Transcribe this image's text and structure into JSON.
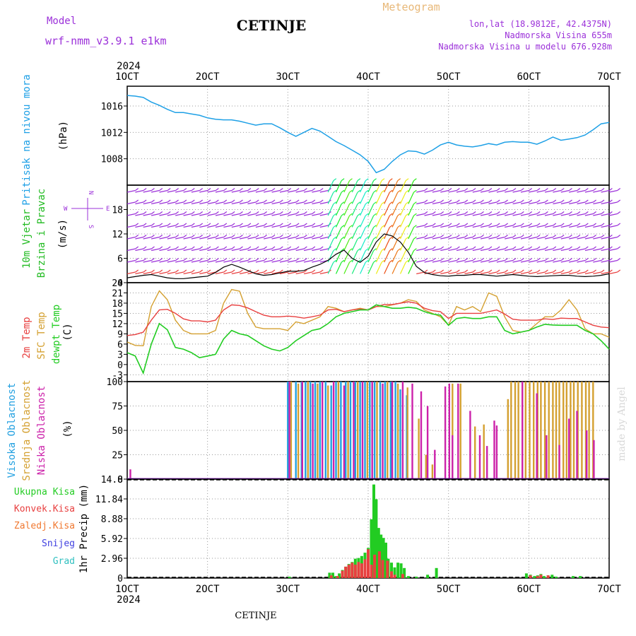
{
  "header": {
    "model_label": "Model",
    "model_name": "wrf-nmm_v3.9.1 e1km",
    "station": "CETINJE",
    "meteogram": "Meteogram",
    "lonlat": "lon,lat (18.9812E, 42.4375N)",
    "altitude": "Nadmorska Visina 655m",
    "model_altitude": "Nadmorska Visina u modelu 676.928m"
  },
  "footer": {
    "station": "CETINJE",
    "watermark": "made by Angel"
  },
  "colors": {
    "pressure": "#1ea0e6",
    "wind_label": "#22bb22",
    "temp2m": "#e84040",
    "sfc": "#d4a030",
    "dewpt": "#22cc22",
    "high": "#22a0e0",
    "mid": "#d4a030",
    "low": "#cc22aa",
    "total": "#22cc22",
    "conv": "#e84040",
    "frozen": "#f07830",
    "snow": "#4040e0",
    "graupel": "#30c0c0",
    "purple": "#9b30d9"
  },
  "chart_data": [
    {
      "type": "line",
      "title": "Pritisak na nivou mora",
      "ylabel": "(hPa)",
      "ylim": [
        1004,
        1019
      ],
      "yticks": [
        "1016",
        "1012",
        "1008"
      ],
      "x": [
        10,
        11,
        12,
        13,
        14,
        15,
        16,
        17,
        18,
        19,
        20,
        21,
        22,
        23,
        24,
        25,
        26,
        27,
        28,
        29,
        30,
        31,
        32,
        33,
        34,
        35,
        36,
        37,
        38,
        39,
        40,
        41,
        42,
        43,
        44,
        45,
        46,
        47,
        48,
        49,
        50,
        51,
        52,
        53,
        54,
        55,
        56,
        57,
        58,
        59,
        60,
        61,
        62,
        63,
        64,
        65,
        66,
        67,
        68,
        69,
        70
      ],
      "series": [
        {
          "name": "Pritisak na nivou mora",
          "values": [
            1017.6,
            1017.5,
            1017.3,
            1016.6,
            1016.1,
            1015.5,
            1015,
            1015,
            1014.8,
            1014.6,
            1014.2,
            1014,
            1013.9,
            1013.9,
            1013.7,
            1013.4,
            1013.1,
            1013.3,
            1013.3,
            1012.7,
            1012,
            1011.4,
            1012,
            1012.6,
            1012.2,
            1011.4,
            1010.6,
            1010,
            1009.3,
            1008.6,
            1007.6,
            1005.9,
            1006.4,
            1007.6,
            1008.6,
            1009.2,
            1009.1,
            1008.7,
            1009.3,
            1010.1,
            1010.5,
            1010.1,
            1009.9,
            1009.8,
            1010,
            1010.3,
            1010.1,
            1010.5,
            1010.6,
            1010.5,
            1010.5,
            1010.2,
            1010.7,
            1011.3,
            1010.8,
            1011,
            1011.2,
            1011.6,
            1012.4,
            1013.3,
            1013.5
          ]
        }
      ]
    },
    {
      "type": "line",
      "title": "10m Vjetar",
      "subtitle": "Brzina i Pravac",
      "ylabel": "(m/s)",
      "ylim": [
        0,
        24
      ],
      "yticks": [
        "18",
        "12",
        "6",
        "0"
      ],
      "compass": {
        "n": "N",
        "s": "S",
        "w": "W",
        "e": "E"
      },
      "x": [
        10,
        11,
        12,
        13,
        14,
        15,
        16,
        17,
        18,
        19,
        20,
        21,
        22,
        23,
        24,
        25,
        26,
        27,
        28,
        29,
        30,
        31,
        32,
        33,
        34,
        35,
        36,
        37,
        38,
        39,
        40,
        41,
        42,
        43,
        44,
        45,
        46,
        47,
        48,
        49,
        50,
        51,
        52,
        53,
        54,
        55,
        56,
        57,
        58,
        59,
        60,
        61,
        62,
        63,
        64,
        65,
        66,
        67,
        68,
        69,
        70
      ],
      "series": [
        {
          "name": "10m Vjetar",
          "values": [
            1.2,
            1.5,
            1.8,
            2,
            1.6,
            1.2,
            1,
            1,
            1.2,
            1.4,
            1.6,
            2.5,
            3.8,
            4.5,
            3.8,
            3,
            2.2,
            1.8,
            2,
            2.4,
            2.8,
            2.8,
            3,
            3.8,
            4.5,
            5.5,
            7,
            8,
            6,
            5,
            6.5,
            10,
            12,
            11.5,
            10,
            7.5,
            4,
            2.5,
            2,
            1.7,
            1.6,
            1.8,
            1.8,
            2,
            2,
            1.8,
            1.6,
            1.8,
            2,
            1.8,
            1.6,
            1.5,
            1.6,
            1.7,
            1.8,
            1.8,
            1.6,
            1.5,
            1.6,
            1.8,
            2.2
          ]
        }
      ]
    },
    {
      "type": "line",
      "title": "2m Temp",
      "ylabel": "(C)",
      "ylim": [
        -5,
        24
      ],
      "yticks": [
        "24",
        "21",
        "18",
        "15",
        "12",
        "9",
        "6",
        "3",
        "0",
        "-3"
      ],
      "x": [
        10,
        11,
        12,
        13,
        14,
        15,
        16,
        17,
        18,
        19,
        20,
        21,
        22,
        23,
        24,
        25,
        26,
        27,
        28,
        29,
        30,
        31,
        32,
        33,
        34,
        35,
        36,
        37,
        38,
        39,
        40,
        41,
        42,
        43,
        44,
        45,
        46,
        47,
        48,
        49,
        50,
        51,
        52,
        53,
        54,
        55,
        56,
        57,
        58,
        59,
        60,
        61,
        62,
        63,
        64,
        65,
        66,
        67,
        68,
        69,
        70
      ],
      "series": [
        {
          "name": "2m Temp",
          "values": [
            8.5,
            8.8,
            9.5,
            13,
            16,
            16.2,
            15,
            13.4,
            12.8,
            12.8,
            12.5,
            13,
            16,
            17.5,
            17.3,
            16.6,
            15.5,
            14.5,
            14,
            14,
            14.2,
            14,
            13.6,
            14,
            14.5,
            16,
            16.2,
            15.5,
            16,
            16.3,
            16,
            17,
            17.6,
            17.6,
            18,
            18.4,
            18,
            16.5,
            15.8,
            15.5,
            13.5,
            15,
            15,
            15,
            15,
            15.5,
            16,
            14.8,
            13.3,
            13,
            13,
            13,
            13.4,
            13.2,
            13.6,
            13.5,
            13.5,
            12.5,
            11.5,
            11,
            10.8
          ]
        },
        {
          "name": "SFC Temp",
          "values": [
            6.6,
            5.6,
            5.5,
            17,
            21.6,
            19,
            13,
            10,
            9,
            9,
            9,
            10,
            18,
            22,
            21.5,
            15,
            11,
            10.5,
            10.5,
            10.5,
            10,
            12.5,
            12,
            13,
            14,
            17,
            16.5,
            15.5,
            16,
            16.5,
            16,
            17,
            17,
            17.5,
            18,
            19,
            18.5,
            16,
            15,
            14,
            11.5,
            17,
            16,
            17,
            15.5,
            21,
            20,
            14,
            10,
            9.5,
            10,
            12,
            14,
            14,
            16,
            19,
            16,
            10.5,
            9,
            9,
            8
          ]
        },
        {
          "name": "dewpt Temp",
          "values": [
            3.5,
            2.5,
            -2.5,
            6,
            12,
            10.2,
            5,
            4.5,
            3.5,
            2,
            2.5,
            3,
            7.5,
            10,
            9,
            8.5,
            7,
            5.5,
            4.5,
            4,
            5,
            7,
            8.5,
            10,
            10.5,
            12,
            14,
            15,
            15.5,
            16,
            16,
            17.5,
            17,
            16.5,
            16.5,
            16.8,
            16.5,
            15.5,
            14.8,
            14.5,
            11.5,
            13.5,
            13.8,
            13.5,
            13.5,
            14,
            14,
            10,
            9,
            9.5,
            10,
            11,
            11.8,
            11.6,
            11.5,
            11.5,
            11.5,
            10,
            9,
            7,
            4.5
          ]
        }
      ]
    },
    {
      "type": "bar",
      "title": "Visoka Oblacnost",
      "ylabel": "(%)",
      "ylim": [
        0,
        100
      ],
      "yticks": [
        "100",
        "75",
        "50",
        "25",
        "0"
      ],
      "series": [
        {
          "name": "Visoka Oblacnost",
          "x": [
            30,
            31,
            31.7,
            32.2,
            32.8,
            33.4,
            34,
            34.7,
            35.4,
            36,
            36.6,
            37.2,
            37.8,
            38.4,
            39,
            39.6,
            40.2,
            40.8,
            41.5,
            42.1,
            42.8,
            43.4,
            44,
            44.8
          ],
          "values": [
            100,
            100,
            100,
            100,
            100,
            100,
            100,
            100,
            96,
            100,
            100,
            100,
            100,
            100,
            100,
            100,
            100,
            100,
            100,
            100,
            100,
            100,
            92,
            86
          ]
        },
        {
          "name": "Srednja Oblacnost",
          "x": [
            30.4,
            31.3,
            32.5,
            33.7,
            35,
            36.3,
            37.5,
            38.7,
            39.9,
            41.1,
            42.4,
            43.7,
            44.9,
            46.3,
            47.2,
            48,
            50.5,
            51.5,
            53.3,
            54.4,
            57.4,
            57.8,
            58.3,
            58.7,
            59.2,
            59.6,
            60.1,
            60.6,
            61.1,
            61.5,
            62,
            62.5,
            63,
            63.4,
            63.8,
            64.3,
            64.7,
            65.2,
            65.6,
            66.1,
            66.6,
            67.1,
            67.5,
            68
          ],
          "values": [
            100,
            98,
            100,
            98,
            96,
            100,
            100,
            100,
            100,
            100,
            100,
            98,
            94,
            62,
            25,
            15,
            98,
            98,
            54,
            56,
            82,
            100,
            100,
            100,
            100,
            100,
            100,
            100,
            100,
            100,
            100,
            100,
            100,
            100,
            100,
            100,
            100,
            100,
            100,
            100,
            100,
            100,
            100,
            100
          ]
        },
        {
          "name": "Niska Oblacnost",
          "x": [
            10.4,
            30.2,
            31.8,
            33.1,
            34.3,
            35.7,
            37,
            38.2,
            39.3,
            40.5,
            41.8,
            43,
            44.3,
            45.5,
            46.6,
            47.4,
            48.3,
            49.6,
            50.1,
            50.5,
            51.2,
            52.7,
            53.9,
            54.8,
            55.7,
            56,
            59.2,
            61,
            62.2,
            63.8,
            65,
            66,
            67.2,
            68.1
          ],
          "values": [
            10,
            100,
            100,
            98,
            100,
            100,
            96,
            100,
            100,
            100,
            98,
            100,
            100,
            98,
            90,
            75,
            30,
            95,
            98,
            45,
            98,
            70,
            45,
            34,
            60,
            55,
            100,
            88,
            45,
            35,
            62,
            70,
            50,
            40
          ]
        }
      ]
    },
    {
      "type": "bar",
      "title": "1hr Precip",
      "ylabel": "1hr Precip (mm)",
      "ylim": [
        0,
        14.8
      ],
      "yticks": [
        "14.8",
        "11.84",
        "8.88",
        "5.92",
        "2.96",
        "0"
      ],
      "xticks": [
        "1OCT",
        "2OCT",
        "3OCT",
        "4OCT",
        "5OCT",
        "6OCT",
        "7OCT"
      ],
      "xyear": "2024",
      "legend": [
        "Ukupna Kisa",
        "Konvek.Kisa",
        "Zaledj.Kisa",
        "Snijeg",
        "Grad"
      ],
      "series": [
        {
          "name": "Ukupna Kisa",
          "x": [
            30.2,
            35.2,
            35.6,
            36,
            36.4,
            36.8,
            37.2,
            37.6,
            38,
            38.4,
            38.8,
            39.2,
            39.6,
            40,
            40.4,
            40.7,
            41,
            41.3,
            41.6,
            41.9,
            42.2,
            42.5,
            42.9,
            43.3,
            43.7,
            44.1,
            44.5,
            45,
            46,
            47.4,
            48.5,
            59.7,
            60.2,
            60.7,
            61.1,
            61.5,
            61.9,
            62.4,
            62.9,
            63.4,
            65.5,
            66.4
          ],
          "values": [
            0.2,
            0.8,
            0.8,
            0.3,
            0.7,
            1.2,
            1.7,
            2.1,
            2.4,
            2.9,
            3,
            3.3,
            3.8,
            4.5,
            8.8,
            14,
            11.8,
            7.5,
            6.5,
            6,
            5.3,
            2.9,
            2.3,
            1.6,
            2.3,
            2.2,
            1.5,
            0.3,
            0.2,
            0.5,
            1.5,
            0.7,
            0.5,
            0.3,
            0.4,
            0.6,
            0.3,
            0.4,
            0.5,
            0.2,
            0.3,
            0.3
          ]
        },
        {
          "name": "Konvek.Kisa",
          "x": [
            35.4,
            36.2,
            36.8,
            37.2,
            37.6,
            38,
            38.4,
            38.8,
            39.2,
            39.6,
            40,
            40.4,
            40.8,
            41.4,
            41.8,
            42.4,
            42.9,
            43.3,
            44.3,
            60.2,
            61.1,
            61.5,
            62.4
          ],
          "values": [
            0.4,
            0.3,
            1.1,
            1.7,
            2,
            2.3,
            2,
            2.4,
            2.2,
            2.8,
            4.3,
            2,
            3.5,
            4,
            2.7,
            2.6,
            1,
            0.5,
            0.6,
            0.4,
            0.3,
            0.5,
            0.4
          ]
        }
      ]
    }
  ]
}
